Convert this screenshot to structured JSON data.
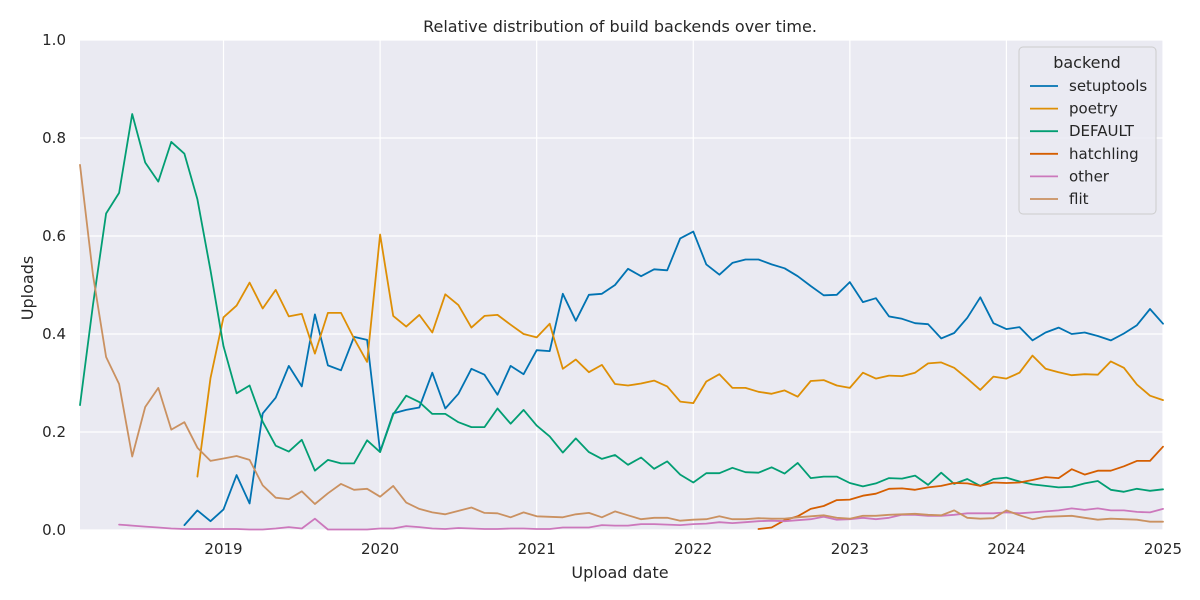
{
  "chart_data": {
    "type": "line",
    "title": "Relative distribution of build backends over time.",
    "xlabel": "Upload date",
    "ylabel": "Uploads",
    "xlim": [
      "2018-02",
      "2025-01"
    ],
    "ylim": [
      0,
      1
    ],
    "x_ticks": [
      "2019",
      "2020",
      "2021",
      "2022",
      "2023",
      "2024",
      "2025"
    ],
    "y_ticks": [
      "0.0",
      "0.2",
      "0.4",
      "0.6",
      "0.8",
      "1.0"
    ],
    "grid": true,
    "legend": {
      "title": "backend",
      "placement": "top-right"
    },
    "background": "#eaeaf2",
    "series": [
      {
        "name": "setuptools",
        "color": "#0173b2",
        "x": [
          "2018-10",
          "2018-11",
          "2018-12",
          "2019-01",
          "2019-02",
          "2019-03",
          "2019-04",
          "2019-05",
          "2019-06",
          "2019-07",
          "2019-08",
          "2019-09",
          "2019-10",
          "2019-11",
          "2019-12",
          "2020-01",
          "2020-02",
          "2020-03",
          "2020-04",
          "2020-05",
          "2020-06",
          "2020-07",
          "2020-08",
          "2020-09",
          "2020-10",
          "2020-11",
          "2020-12",
          "2021-01",
          "2021-02",
          "2021-03",
          "2021-04",
          "2021-05",
          "2021-06",
          "2021-07",
          "2021-08",
          "2021-09",
          "2021-10",
          "2021-11",
          "2021-12",
          "2022-01",
          "2022-02",
          "2022-03",
          "2022-04",
          "2022-05",
          "2022-06",
          "2022-07",
          "2022-08",
          "2022-09",
          "2022-10",
          "2022-11",
          "2022-12",
          "2023-01",
          "2023-02",
          "2023-03",
          "2023-04",
          "2023-05",
          "2023-06",
          "2023-07",
          "2023-08",
          "2023-09",
          "2023-10",
          "2023-11",
          "2023-12",
          "2024-01",
          "2024-02",
          "2024-03",
          "2024-04",
          "2024-05",
          "2024-06",
          "2024-07",
          "2024-08",
          "2024-09",
          "2024-10",
          "2024-11",
          "2024-12",
          "2025-01"
        ],
        "values": [
          0.01,
          0.04,
          0.018,
          0.042,
          0.112,
          0.054,
          0.238,
          0.27,
          0.335,
          0.293,
          0.44,
          0.336,
          0.326,
          0.394,
          0.388,
          0.16,
          0.238,
          0.245,
          0.25,
          0.321,
          0.248,
          0.278,
          0.329,
          0.317,
          0.276,
          0.335,
          0.318,
          0.367,
          0.365,
          0.482,
          0.427,
          0.48,
          0.482,
          0.5,
          0.533,
          0.518,
          0.532,
          0.53,
          0.595,
          0.609,
          0.542,
          0.521,
          0.545,
          0.552,
          0.552,
          0.542,
          0.534,
          0.518,
          0.498,
          0.479,
          0.48,
          0.506,
          0.465,
          0.473,
          0.436,
          0.431,
          0.422,
          0.42,
          0.391,
          0.402,
          0.433,
          0.475,
          0.422,
          0.41,
          0.414,
          0.387,
          0.403,
          0.413,
          0.4,
          0.403,
          0.396,
          0.387,
          0.401,
          0.418,
          0.451,
          0.421
        ]
      },
      {
        "name": "poetry",
        "color": "#de8f05",
        "x": [
          "2018-11",
          "2018-12",
          "2019-01",
          "2019-02",
          "2019-03",
          "2019-04",
          "2019-05",
          "2019-06",
          "2019-07",
          "2019-08",
          "2019-09",
          "2019-10",
          "2019-11",
          "2019-12",
          "2020-01",
          "2020-02",
          "2020-03",
          "2020-04",
          "2020-05",
          "2020-06",
          "2020-07",
          "2020-08",
          "2020-09",
          "2020-10",
          "2020-11",
          "2020-12",
          "2021-01",
          "2021-02",
          "2021-03",
          "2021-04",
          "2021-05",
          "2021-06",
          "2021-07",
          "2021-08",
          "2021-09",
          "2021-10",
          "2021-11",
          "2021-12",
          "2022-01",
          "2022-02",
          "2022-03",
          "2022-04",
          "2022-05",
          "2022-06",
          "2022-07",
          "2022-08",
          "2022-09",
          "2022-10",
          "2022-11",
          "2022-12",
          "2023-01",
          "2023-02",
          "2023-03",
          "2023-04",
          "2023-05",
          "2023-06",
          "2023-07",
          "2023-08",
          "2023-09",
          "2023-10",
          "2023-11",
          "2023-12",
          "2024-01",
          "2024-02",
          "2024-03",
          "2024-04",
          "2024-05",
          "2024-06",
          "2024-07",
          "2024-08",
          "2024-09",
          "2024-10",
          "2024-11",
          "2024-12",
          "2025-01"
        ],
        "values": [
          0.109,
          0.31,
          0.434,
          0.458,
          0.505,
          0.452,
          0.49,
          0.436,
          0.441,
          0.36,
          0.443,
          0.443,
          0.391,
          0.343,
          0.603,
          0.437,
          0.415,
          0.439,
          0.403,
          0.481,
          0.459,
          0.413,
          0.437,
          0.439,
          0.419,
          0.4,
          0.393,
          0.421,
          0.329,
          0.348,
          0.322,
          0.337,
          0.298,
          0.295,
          0.299,
          0.305,
          0.293,
          0.262,
          0.259,
          0.303,
          0.318,
          0.29,
          0.29,
          0.282,
          0.278,
          0.285,
          0.272,
          0.304,
          0.306,
          0.295,
          0.29,
          0.321,
          0.309,
          0.315,
          0.314,
          0.321,
          0.34,
          0.342,
          0.331,
          0.309,
          0.286,
          0.313,
          0.309,
          0.321,
          0.356,
          0.329,
          0.322,
          0.316,
          0.318,
          0.317,
          0.344,
          0.331,
          0.297,
          0.274,
          0.265
        ]
      },
      {
        "name": "DEFAULT",
        "color": "#029e73",
        "x": [
          "2018-02",
          "2018-03",
          "2018-04",
          "2018-05",
          "2018-06",
          "2018-07",
          "2018-08",
          "2018-09",
          "2018-10",
          "2018-11",
          "2018-12",
          "2019-01",
          "2019-02",
          "2019-03",
          "2019-04",
          "2019-05",
          "2019-06",
          "2019-07",
          "2019-08",
          "2019-09",
          "2019-10",
          "2019-11",
          "2019-12",
          "2020-01",
          "2020-02",
          "2020-03",
          "2020-04",
          "2020-05",
          "2020-06",
          "2020-07",
          "2020-08",
          "2020-09",
          "2020-10",
          "2020-11",
          "2020-12",
          "2021-01",
          "2021-02",
          "2021-03",
          "2021-04",
          "2021-05",
          "2021-06",
          "2021-07",
          "2021-08",
          "2021-09",
          "2021-10",
          "2021-11",
          "2021-12",
          "2022-01",
          "2022-02",
          "2022-03",
          "2022-04",
          "2022-05",
          "2022-06",
          "2022-07",
          "2022-08",
          "2022-09",
          "2022-10",
          "2022-11",
          "2022-12",
          "2023-01",
          "2023-02",
          "2023-03",
          "2023-04",
          "2023-05",
          "2023-06",
          "2023-07",
          "2023-08",
          "2023-09",
          "2023-10",
          "2023-11",
          "2023-12",
          "2024-01",
          "2024-02",
          "2024-03",
          "2024-04",
          "2024-05",
          "2024-06",
          "2024-07",
          "2024-08",
          "2024-09",
          "2024-10",
          "2024-11",
          "2024-12",
          "2025-01"
        ],
        "values": [
          0.255,
          0.46,
          0.646,
          0.688,
          0.849,
          0.75,
          0.711,
          0.792,
          0.768,
          0.675,
          0.53,
          0.375,
          0.279,
          0.295,
          0.221,
          0.172,
          0.16,
          0.184,
          0.121,
          0.143,
          0.136,
          0.136,
          0.183,
          0.159,
          0.236,
          0.274,
          0.261,
          0.237,
          0.237,
          0.22,
          0.21,
          0.21,
          0.248,
          0.217,
          0.245,
          0.213,
          0.191,
          0.158,
          0.187,
          0.159,
          0.145,
          0.153,
          0.133,
          0.148,
          0.125,
          0.14,
          0.113,
          0.097,
          0.116,
          0.116,
          0.127,
          0.118,
          0.117,
          0.128,
          0.115,
          0.137,
          0.106,
          0.109,
          0.109,
          0.096,
          0.089,
          0.095,
          0.106,
          0.105,
          0.111,
          0.092,
          0.117,
          0.094,
          0.104,
          0.09,
          0.104,
          0.107,
          0.099,
          0.093,
          0.09,
          0.087,
          0.088,
          0.095,
          0.1,
          0.082,
          0.078,
          0.084,
          0.08,
          0.083
        ]
      },
      {
        "name": "hatchling",
        "color": "#d55e00",
        "x": [
          "2022-06",
          "2022-07",
          "2022-08",
          "2022-09",
          "2022-10",
          "2022-11",
          "2022-12",
          "2023-01",
          "2023-02",
          "2023-03",
          "2023-04",
          "2023-05",
          "2023-06",
          "2023-07",
          "2023-08",
          "2023-09",
          "2023-10",
          "2023-11",
          "2023-12",
          "2024-01",
          "2024-02",
          "2024-03",
          "2024-04",
          "2024-05",
          "2024-06",
          "2024-07",
          "2024-08",
          "2024-09",
          "2024-10",
          "2024-11",
          "2024-12",
          "2025-01"
        ],
        "values": [
          0.002,
          0.005,
          0.02,
          0.028,
          0.043,
          0.049,
          0.061,
          0.062,
          0.07,
          0.074,
          0.084,
          0.085,
          0.082,
          0.087,
          0.09,
          0.096,
          0.095,
          0.09,
          0.097,
          0.096,
          0.097,
          0.102,
          0.108,
          0.106,
          0.124,
          0.113,
          0.121,
          0.121,
          0.13,
          0.141,
          0.141,
          0.17
        ]
      },
      {
        "name": "other",
        "color": "#cc78bc",
        "x": [
          "2018-05",
          "2018-06",
          "2018-07",
          "2018-08",
          "2018-09",
          "2018-10",
          "2018-11",
          "2018-12",
          "2019-01",
          "2019-02",
          "2019-03",
          "2019-04",
          "2019-05",
          "2019-06",
          "2019-07",
          "2019-08",
          "2019-09",
          "2019-10",
          "2019-11",
          "2019-12",
          "2020-01",
          "2020-02",
          "2020-03",
          "2020-04",
          "2020-05",
          "2020-06",
          "2020-07",
          "2020-08",
          "2020-09",
          "2020-10",
          "2020-11",
          "2020-12",
          "2021-01",
          "2021-02",
          "2021-03",
          "2021-04",
          "2021-05",
          "2021-06",
          "2021-07",
          "2021-08",
          "2021-09",
          "2021-10",
          "2021-11",
          "2021-12",
          "2022-01",
          "2022-02",
          "2022-03",
          "2022-04",
          "2022-05",
          "2022-06",
          "2022-07",
          "2022-08",
          "2022-09",
          "2022-10",
          "2022-11",
          "2022-12",
          "2023-01",
          "2023-02",
          "2023-03",
          "2023-04",
          "2023-05",
          "2023-06",
          "2023-07",
          "2023-08",
          "2023-09",
          "2023-10",
          "2023-11",
          "2023-12",
          "2024-01",
          "2024-02",
          "2024-03",
          "2024-04",
          "2024-05",
          "2024-06",
          "2024-07",
          "2024-08",
          "2024-09",
          "2024-10",
          "2024-11",
          "2024-12",
          "2025-01"
        ],
        "values": [
          0.011,
          0.009,
          0.007,
          0.005,
          0.003,
          0.002,
          0.002,
          0.002,
          0.002,
          0.002,
          0.001,
          0.001,
          0.003,
          0.006,
          0.003,
          0.023,
          0.001,
          0.001,
          0.001,
          0.001,
          0.003,
          0.003,
          0.008,
          0.006,
          0.003,
          0.002,
          0.004,
          0.003,
          0.002,
          0.002,
          0.003,
          0.003,
          0.002,
          0.002,
          0.005,
          0.005,
          0.005,
          0.01,
          0.009,
          0.009,
          0.012,
          0.012,
          0.011,
          0.01,
          0.012,
          0.013,
          0.016,
          0.014,
          0.016,
          0.018,
          0.019,
          0.018,
          0.02,
          0.022,
          0.027,
          0.021,
          0.022,
          0.025,
          0.022,
          0.025,
          0.031,
          0.031,
          0.029,
          0.029,
          0.031,
          0.034,
          0.034,
          0.034,
          0.036,
          0.034,
          0.036,
          0.038,
          0.04,
          0.044,
          0.041,
          0.044,
          0.04,
          0.04,
          0.037,
          0.036,
          0.043
        ]
      },
      {
        "name": "flit",
        "color": "#ca9161",
        "x": [
          "2018-02",
          "2018-03",
          "2018-04",
          "2018-05",
          "2018-06",
          "2018-07",
          "2018-08",
          "2018-09",
          "2018-10",
          "2018-11",
          "2018-12",
          "2019-01",
          "2019-02",
          "2019-03",
          "2019-04",
          "2019-05",
          "2019-06",
          "2019-07",
          "2019-08",
          "2019-09",
          "2019-10",
          "2019-11",
          "2019-12",
          "2020-01",
          "2020-02",
          "2020-03",
          "2020-04",
          "2020-05",
          "2020-06",
          "2020-07",
          "2020-08",
          "2020-09",
          "2020-10",
          "2020-11",
          "2020-12",
          "2021-01",
          "2021-02",
          "2021-03",
          "2021-04",
          "2021-05",
          "2021-06",
          "2021-07",
          "2021-08",
          "2021-09",
          "2021-10",
          "2021-11",
          "2021-12",
          "2022-01",
          "2022-02",
          "2022-03",
          "2022-04",
          "2022-05",
          "2022-06",
          "2022-07",
          "2022-08",
          "2022-09",
          "2022-10",
          "2022-11",
          "2022-12",
          "2023-01",
          "2023-02",
          "2023-03",
          "2023-04",
          "2023-05",
          "2023-06",
          "2023-07",
          "2023-08",
          "2023-09",
          "2023-10",
          "2023-11",
          "2023-12",
          "2024-01",
          "2024-02",
          "2024-03",
          "2024-04",
          "2024-05",
          "2024-06",
          "2024-07",
          "2024-08",
          "2024-09",
          "2024-10",
          "2024-11",
          "2024-12",
          "2025-01"
        ],
        "values": [
          0.745,
          0.52,
          0.353,
          0.298,
          0.15,
          0.251,
          0.29,
          0.205,
          0.22,
          0.168,
          0.141,
          0.146,
          0.151,
          0.143,
          0.091,
          0.066,
          0.063,
          0.079,
          0.053,
          0.075,
          0.094,
          0.082,
          0.084,
          0.068,
          0.09,
          0.056,
          0.043,
          0.036,
          0.032,
          0.039,
          0.046,
          0.035,
          0.034,
          0.026,
          0.036,
          0.028,
          0.027,
          0.026,
          0.032,
          0.035,
          0.026,
          0.038,
          0.03,
          0.022,
          0.025,
          0.025,
          0.019,
          0.021,
          0.022,
          0.028,
          0.022,
          0.022,
          0.024,
          0.023,
          0.023,
          0.026,
          0.028,
          0.03,
          0.025,
          0.023,
          0.029,
          0.029,
          0.031,
          0.032,
          0.033,
          0.031,
          0.03,
          0.04,
          0.025,
          0.023,
          0.024,
          0.04,
          0.03,
          0.022,
          0.027,
          0.028,
          0.029,
          0.025,
          0.021,
          0.023,
          0.022,
          0.021,
          0.017,
          0.017
        ]
      }
    ]
  }
}
